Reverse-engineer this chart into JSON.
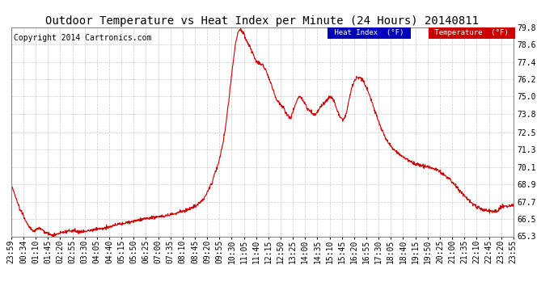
{
  "title": "Outdoor Temperature vs Heat Index per Minute (24 Hours) 20140811",
  "copyright": "Copyright 2014 Cartronics.com",
  "ylabel_right_ticks": [
    65.3,
    66.5,
    67.7,
    68.9,
    70.1,
    71.3,
    72.5,
    73.8,
    75.0,
    76.2,
    77.4,
    78.6,
    79.8
  ],
  "ymin": 65.3,
  "ymax": 79.8,
  "line_color": "#cc0000",
  "background_color": "#ffffff",
  "grid_color": "#bbbbbb",
  "legend_heat_index_bg": "#0000bb",
  "legend_heat_index_text": "#ffffff",
  "legend_temp_bg": "#cc0000",
  "legend_temp_text": "#ffffff",
  "title_fontsize": 10,
  "copyright_fontsize": 7,
  "tick_fontsize": 7,
  "x_tick_labels": [
    "23:59",
    "00:34",
    "01:10",
    "01:45",
    "02:20",
    "02:55",
    "03:30",
    "04:05",
    "04:40",
    "05:15",
    "05:50",
    "06:25",
    "07:00",
    "07:35",
    "08:10",
    "08:45",
    "09:20",
    "09:55",
    "10:30",
    "11:05",
    "11:40",
    "12:15",
    "12:50",
    "13:25",
    "14:00",
    "14:35",
    "15:10",
    "15:45",
    "16:20",
    "16:55",
    "17:30",
    "18:05",
    "18:40",
    "19:15",
    "19:50",
    "20:25",
    "21:00",
    "21:35",
    "22:10",
    "22:45",
    "23:20",
    "23:55"
  ],
  "keypoints": [
    [
      0,
      68.9
    ],
    [
      25,
      67.2
    ],
    [
      50,
      66.0
    ],
    [
      65,
      65.65
    ],
    [
      80,
      65.9
    ],
    [
      100,
      65.55
    ],
    [
      120,
      65.35
    ],
    [
      140,
      65.55
    ],
    [
      160,
      65.65
    ],
    [
      180,
      65.7
    ],
    [
      200,
      65.6
    ],
    [
      220,
      65.7
    ],
    [
      240,
      65.8
    ],
    [
      260,
      65.85
    ],
    [
      280,
      65.95
    ],
    [
      300,
      66.1
    ],
    [
      320,
      66.2
    ],
    [
      340,
      66.3
    ],
    [
      360,
      66.4
    ],
    [
      380,
      66.5
    ],
    [
      400,
      66.6
    ],
    [
      420,
      66.65
    ],
    [
      440,
      66.7
    ],
    [
      460,
      66.8
    ],
    [
      480,
      66.95
    ],
    [
      500,
      67.1
    ],
    [
      520,
      67.3
    ],
    [
      540,
      67.6
    ],
    [
      555,
      68.0
    ],
    [
      565,
      68.5
    ],
    [
      575,
      69.0
    ],
    [
      585,
      69.8
    ],
    [
      595,
      70.5
    ],
    [
      605,
      71.5
    ],
    [
      615,
      73.0
    ],
    [
      625,
      75.0
    ],
    [
      635,
      77.2
    ],
    [
      645,
      79.0
    ],
    [
      652,
      79.6
    ],
    [
      658,
      79.7
    ],
    [
      663,
      79.5
    ],
    [
      668,
      79.3
    ],
    [
      672,
      79.0
    ],
    [
      678,
      78.7
    ],
    [
      685,
      78.4
    ],
    [
      692,
      78.0
    ],
    [
      700,
      77.6
    ],
    [
      710,
      77.3
    ],
    [
      720,
      77.2
    ],
    [
      730,
      76.8
    ],
    [
      740,
      76.2
    ],
    [
      750,
      75.5
    ],
    [
      760,
      74.8
    ],
    [
      770,
      74.5
    ],
    [
      775,
      74.4
    ],
    [
      780,
      74.3
    ],
    [
      787,
      73.85
    ],
    [
      793,
      73.65
    ],
    [
      800,
      73.5
    ],
    [
      808,
      74.0
    ],
    [
      815,
      74.5
    ],
    [
      822,
      74.9
    ],
    [
      828,
      75.0
    ],
    [
      835,
      74.8
    ],
    [
      842,
      74.5
    ],
    [
      848,
      74.2
    ],
    [
      855,
      74.0
    ],
    [
      862,
      73.8
    ],
    [
      868,
      73.7
    ],
    [
      875,
      73.85
    ],
    [
      882,
      74.1
    ],
    [
      888,
      74.3
    ],
    [
      895,
      74.5
    ],
    [
      902,
      74.7
    ],
    [
      908,
      74.85
    ],
    [
      914,
      75.0
    ],
    [
      920,
      74.9
    ],
    [
      926,
      74.6
    ],
    [
      932,
      74.2
    ],
    [
      938,
      73.85
    ],
    [
      944,
      73.5
    ],
    [
      950,
      73.4
    ],
    [
      956,
      73.5
    ],
    [
      962,
      74.0
    ],
    [
      968,
      74.8
    ],
    [
      975,
      75.5
    ],
    [
      982,
      76.0
    ],
    [
      990,
      76.3
    ],
    [
      998,
      76.35
    ],
    [
      1005,
      76.2
    ],
    [
      1012,
      76.0
    ],
    [
      1018,
      75.6
    ],
    [
      1025,
      75.2
    ],
    [
      1032,
      74.7
    ],
    [
      1040,
      74.2
    ],
    [
      1050,
      73.5
    ],
    [
      1060,
      72.8
    ],
    [
      1075,
      72.0
    ],
    [
      1090,
      71.5
    ],
    [
      1110,
      71.0
    ],
    [
      1130,
      70.7
    ],
    [
      1150,
      70.4
    ],
    [
      1175,
      70.2
    ],
    [
      1200,
      70.1
    ],
    [
      1220,
      69.9
    ],
    [
      1245,
      69.5
    ],
    [
      1270,
      68.9
    ],
    [
      1295,
      68.2
    ],
    [
      1315,
      67.7
    ],
    [
      1335,
      67.35
    ],
    [
      1355,
      67.1
    ],
    [
      1370,
      67.05
    ],
    [
      1385,
      67.05
    ],
    [
      1395,
      67.1
    ],
    [
      1405,
      67.35
    ],
    [
      1415,
      67.4
    ],
    [
      1425,
      67.35
    ],
    [
      1435,
      67.5
    ],
    [
      1439,
      67.55
    ]
  ]
}
